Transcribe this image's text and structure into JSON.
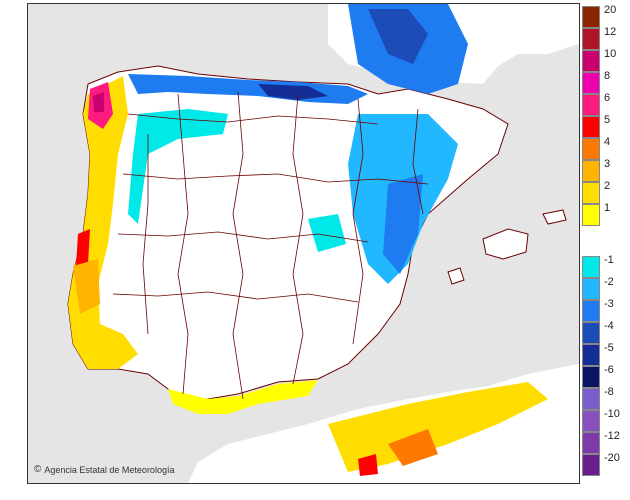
{
  "credit": "Agencia Estatal de Meteorología",
  "legend": {
    "positive": [
      {
        "label": "20",
        "color": "#8b2500"
      },
      {
        "label": "12",
        "color": "#b0142a"
      },
      {
        "label": "10",
        "color": "#c8006e"
      },
      {
        "label": "8",
        "color": "#ee00b0"
      },
      {
        "label": "6",
        "color": "#ff1a80"
      },
      {
        "label": "5",
        "color": "#ff0000"
      },
      {
        "label": "4",
        "color": "#ff7800"
      },
      {
        "label": "3",
        "color": "#ffb400"
      },
      {
        "label": "2",
        "color": "#ffdd00"
      },
      {
        "label": "1",
        "color": "#ffff00"
      }
    ],
    "negative": [
      {
        "label": "-1",
        "color": "#00e8e8"
      },
      {
        "label": "-2",
        "color": "#22b8ff"
      },
      {
        "label": "-3",
        "color": "#1e7bf0"
      },
      {
        "label": "-4",
        "color": "#1d4cb8"
      },
      {
        "label": "-5",
        "color": "#152e96"
      },
      {
        "label": "-6",
        "color": "#0a1464"
      },
      {
        "label": "-8",
        "color": "#7a5ccc"
      },
      {
        "label": "-10",
        "color": "#8a4fbe"
      },
      {
        "label": "-12",
        "color": "#7e3aa8"
      },
      {
        "label": "-20",
        "color": "#6a1f8e"
      }
    ]
  }
}
